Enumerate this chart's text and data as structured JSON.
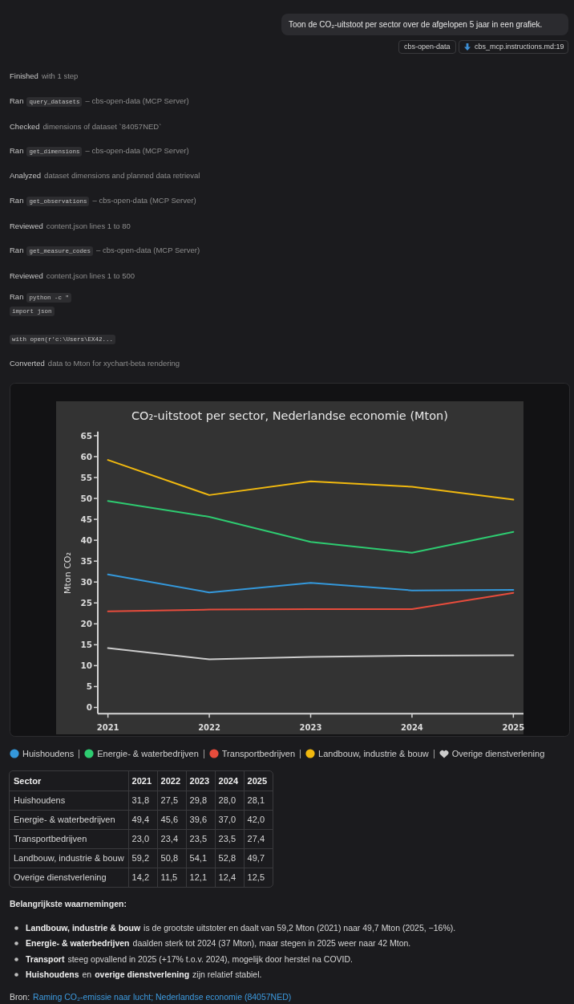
{
  "chart_data": {
    "type": "line",
    "title": "CO₂-uitstoot per sector, Nederlandse economie (Mton)",
    "ylabel": "Mton CO₂",
    "categories": [
      "2021",
      "2022",
      "2023",
      "2024",
      "2025"
    ],
    "series": [
      {
        "name": "Huishoudens",
        "color": "#3498db",
        "values": [
          31.8,
          27.5,
          29.8,
          28.0,
          28.1
        ]
      },
      {
        "name": "Energie- & waterbedrijven",
        "color": "#2ecc71",
        "values": [
          49.4,
          45.6,
          39.6,
          37.0,
          42.0
        ]
      },
      {
        "name": "Transportbedrijven",
        "color": "#e74c3c",
        "values": [
          23.0,
          23.4,
          23.5,
          23.5,
          27.4
        ]
      },
      {
        "name": "Landbouw, industrie & bouw",
        "color": "#f1b90f",
        "values": [
          59.2,
          50.8,
          54.1,
          52.8,
          49.7
        ]
      },
      {
        "name": "Overige dienstverlening",
        "color": "#cccccc",
        "values": [
          14.2,
          11.5,
          12.1,
          12.4,
          12.5
        ]
      }
    ],
    "ylim": [
      -1.5,
      66
    ],
    "yticks": [
      0,
      5,
      10,
      15,
      20,
      25,
      30,
      35,
      40,
      45,
      50,
      55,
      60,
      65
    ],
    "legend": "bottom",
    "annotations": [
      "Toon de CO₂-uitstoot per sector over de afgelopen 5 jaar in een grafiek.",
      "cbs-open-data",
      "cbs_mcp.instructions.md:19",
      "Finished",
      "with 1 step",
      "Ran",
      "query_datasets",
      "– cbs-open-data (MCP Server)",
      "Checked",
      "dimensions of dataset `84057NED`",
      "Ran",
      "get_dimensions",
      "– cbs-open-data (MCP Server)",
      "Analyzed",
      "dataset dimensions and planned data retrieval",
      "Ran",
      "get_observations",
      "– cbs-open-data (MCP Server)",
      "Reviewed",
      "content.json lines 1 to 80",
      "Ran",
      "get_measure_codes",
      "– cbs-open-data (MCP Server)",
      "Reviewed",
      "content.json lines 1 to 500",
      "Ran",
      "python -c \"",
      "import json",
      "with open(r'c:\\Users\\EX42...",
      "Converted",
      "data to Mton for xychart-beta rendering",
      "Sector",
      "31,8",
      "27,5",
      "29,8",
      "28,0",
      "28,1",
      "49,4",
      "45,6",
      "39,6",
      "37,0",
      "42,0",
      "23,0",
      "23,4",
      "23,5",
      "23,5",
      "27,4",
      "59,2",
      "50,8",
      "54,1",
      "52,8",
      "49,7",
      "14,2",
      "11,5",
      "12,1",
      "12,4",
      "12,5",
      "Belangrijkste waarnemingen:",
      "Landbouw, industrie & bouw",
      "is de grootste uitstoter en daalt van 59,2 Mton (2021) naar 49,7 Mton (2025, −16%).",
      "Energie- & waterbedrijven",
      "daalden sterk tot 2024 (37 Mton), maar stegen in 2025 weer naar 42 Mton.",
      "Transport",
      "steeg opvallend in 2025 (+17% t.o.v. 2024), mogelijk door herstel na COVID.",
      "Huishoudens",
      "en",
      "overige dienstverlening",
      "zijn relatief stabiel.",
      "Bron:",
      "Raming CO₂-emissie naar lucht; Nederlandse economie (84057NED)"
    ]
  }
}
